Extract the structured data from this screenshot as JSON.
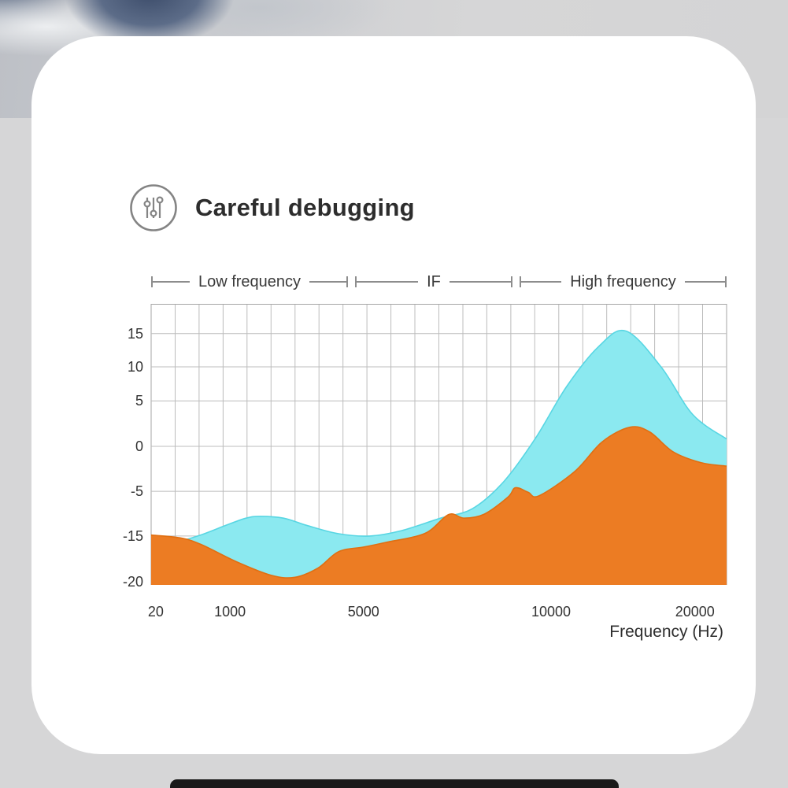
{
  "page": {
    "background": "#d6d6d7",
    "card_background": "#ffffff"
  },
  "header": {
    "title": "Careful debugging",
    "icon": "equalizer-icon",
    "icon_color": "#848484",
    "title_color": "#2d2d2d"
  },
  "bands": {
    "items": [
      "Low frequency",
      "IF",
      "High frequency"
    ]
  },
  "chart_data": {
    "type": "area",
    "title": "",
    "xlabel": "Frequency (Hz)",
    "ylabel": "",
    "legend_position": "none",
    "grid": {
      "v_divisions": 24,
      "color": "#bcbcbc",
      "border_color": "#a6a6a6"
    },
    "x_ticks": [
      {
        "label": "20",
        "f": 0.008
      },
      {
        "label": "1000",
        "f": 0.137
      },
      {
        "label": "5000",
        "f": 0.369
      },
      {
        "label": "10000",
        "f": 0.695
      },
      {
        "label": "20000",
        "f": 0.945
      }
    ],
    "y_ticks": [
      {
        "label": "15",
        "v": 15,
        "f": 0.106
      },
      {
        "label": "10",
        "v": 10,
        "f": 0.224
      },
      {
        "label": "5",
        "v": 5,
        "f": 0.345
      },
      {
        "label": "0",
        "v": 0,
        "f": 0.507
      },
      {
        "label": "-5",
        "v": -5,
        "f": 0.667
      },
      {
        "label": "-15",
        "v": -15,
        "f": 0.826
      },
      {
        "label": "-20",
        "v": -20,
        "f": 0.989
      }
    ],
    "series": [
      {
        "name": "cyan-area",
        "color": "#8BE9F0",
        "edge": "#58d6e3",
        "points": [
          [
            0.055,
            -15.5
          ],
          [
            0.09,
            -14.6
          ],
          [
            0.13,
            -12.6
          ],
          [
            0.165,
            -11.0
          ],
          [
            0.19,
            -10.6
          ],
          [
            0.23,
            -11.0
          ],
          [
            0.27,
            -12.6
          ],
          [
            0.326,
            -14.5
          ],
          [
            0.38,
            -15.0
          ],
          [
            0.435,
            -13.8
          ],
          [
            0.503,
            -11.0
          ],
          [
            0.558,
            -8.9
          ],
          [
            0.613,
            -3.9
          ],
          [
            0.668,
            0.9
          ],
          [
            0.722,
            7.1
          ],
          [
            0.777,
            13.0
          ],
          [
            0.825,
            15.4
          ],
          [
            0.886,
            10.0
          ],
          [
            0.941,
            3.5
          ],
          [
            1.0,
            0.8
          ]
        ]
      },
      {
        "name": "orange-area",
        "color": "#EC7C23",
        "edge": "#e06f12",
        "points": [
          [
            0.0,
            -14.8
          ],
          [
            0.05,
            -15.2
          ],
          [
            0.086,
            -15.9
          ],
          [
            0.148,
            -17.8
          ],
          [
            0.209,
            -19.3
          ],
          [
            0.25,
            -19.5
          ],
          [
            0.29,
            -18.5
          ],
          [
            0.326,
            -16.7
          ],
          [
            0.37,
            -16.2
          ],
          [
            0.408,
            -15.7
          ],
          [
            0.476,
            -14.4
          ],
          [
            0.517,
            -10.2
          ],
          [
            0.544,
            -11.0
          ],
          [
            0.579,
            -10.1
          ],
          [
            0.62,
            -6.3
          ],
          [
            0.633,
            -4.6
          ],
          [
            0.655,
            -5.2
          ],
          [
            0.674,
            -6.0
          ],
          [
            0.736,
            -2.8
          ],
          [
            0.784,
            0.5
          ],
          [
            0.832,
            2.1
          ],
          [
            0.866,
            1.6
          ],
          [
            0.907,
            -0.6
          ],
          [
            0.955,
            -1.8
          ],
          [
            1.0,
            -2.2
          ]
        ]
      }
    ]
  }
}
